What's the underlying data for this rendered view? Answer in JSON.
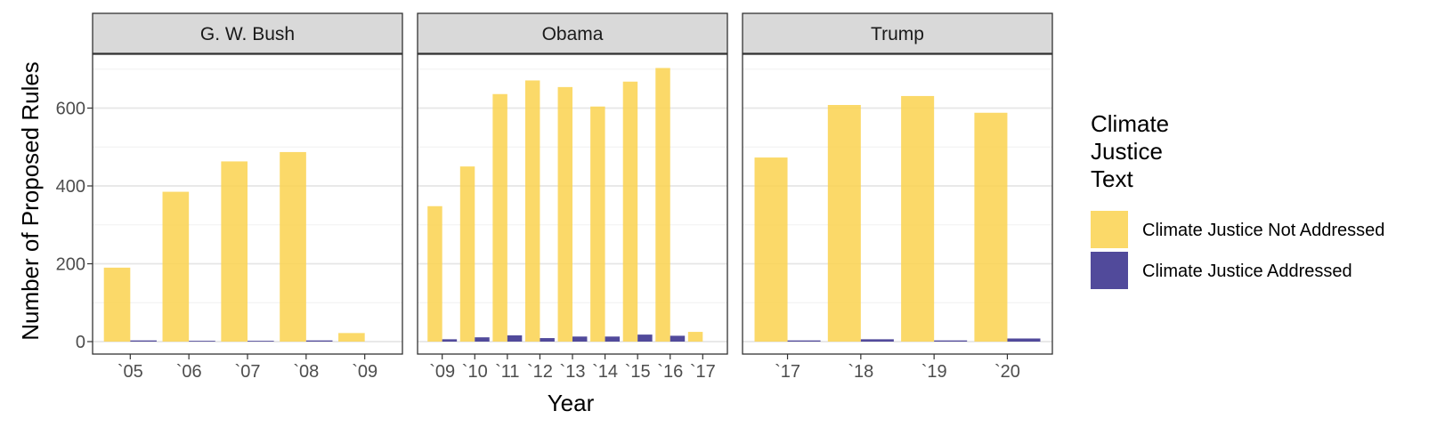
{
  "chart_data": {
    "type": "bar",
    "ylabel": "Number of Proposed Rules",
    "xlabel": "Year",
    "ylim": [
      0,
      750
    ],
    "yticks": [
      0,
      200,
      400,
      600
    ],
    "grid": true,
    "legend_placement": "right",
    "legend": {
      "title_lines": [
        "Climate",
        "Justice",
        "Text"
      ],
      "entries": [
        {
          "key": "not_addressed",
          "label": "Climate Justice Not Addressed",
          "color": "#FAD454"
        },
        {
          "key": "addressed",
          "label": "Climate Justice Addressed",
          "color": "#514A9B"
        }
      ]
    },
    "panels": [
      {
        "title": "G. W. Bush",
        "categories": [
          "`05",
          "`06",
          "`07",
          "`08",
          "`09"
        ],
        "series": [
          {
            "key": "not_addressed",
            "values": [
              190,
              385,
              463,
              487,
              22
            ]
          },
          {
            "key": "addressed",
            "values": [
              3,
              2,
              2,
              3,
              0
            ]
          }
        ]
      },
      {
        "title": "Obama",
        "categories": [
          "`09",
          "`10",
          "`11",
          "`12",
          "`13",
          "`14",
          "`15",
          "`16",
          "`17"
        ],
        "series": [
          {
            "key": "not_addressed",
            "values": [
              348,
              450,
              636,
              671,
              654,
              604,
              668,
              703,
              25
            ]
          },
          {
            "key": "addressed",
            "values": [
              6,
              11,
              16,
              9,
              13,
              13,
              18,
              15,
              0
            ]
          }
        ]
      },
      {
        "title": "Trump",
        "categories": [
          "`17",
          "`18",
          "`19",
          "`20"
        ],
        "series": [
          {
            "key": "not_addressed",
            "values": [
              473,
              608,
              631,
              588
            ]
          },
          {
            "key": "addressed",
            "values": [
              3,
              6,
              3,
              8
            ]
          }
        ]
      }
    ]
  }
}
